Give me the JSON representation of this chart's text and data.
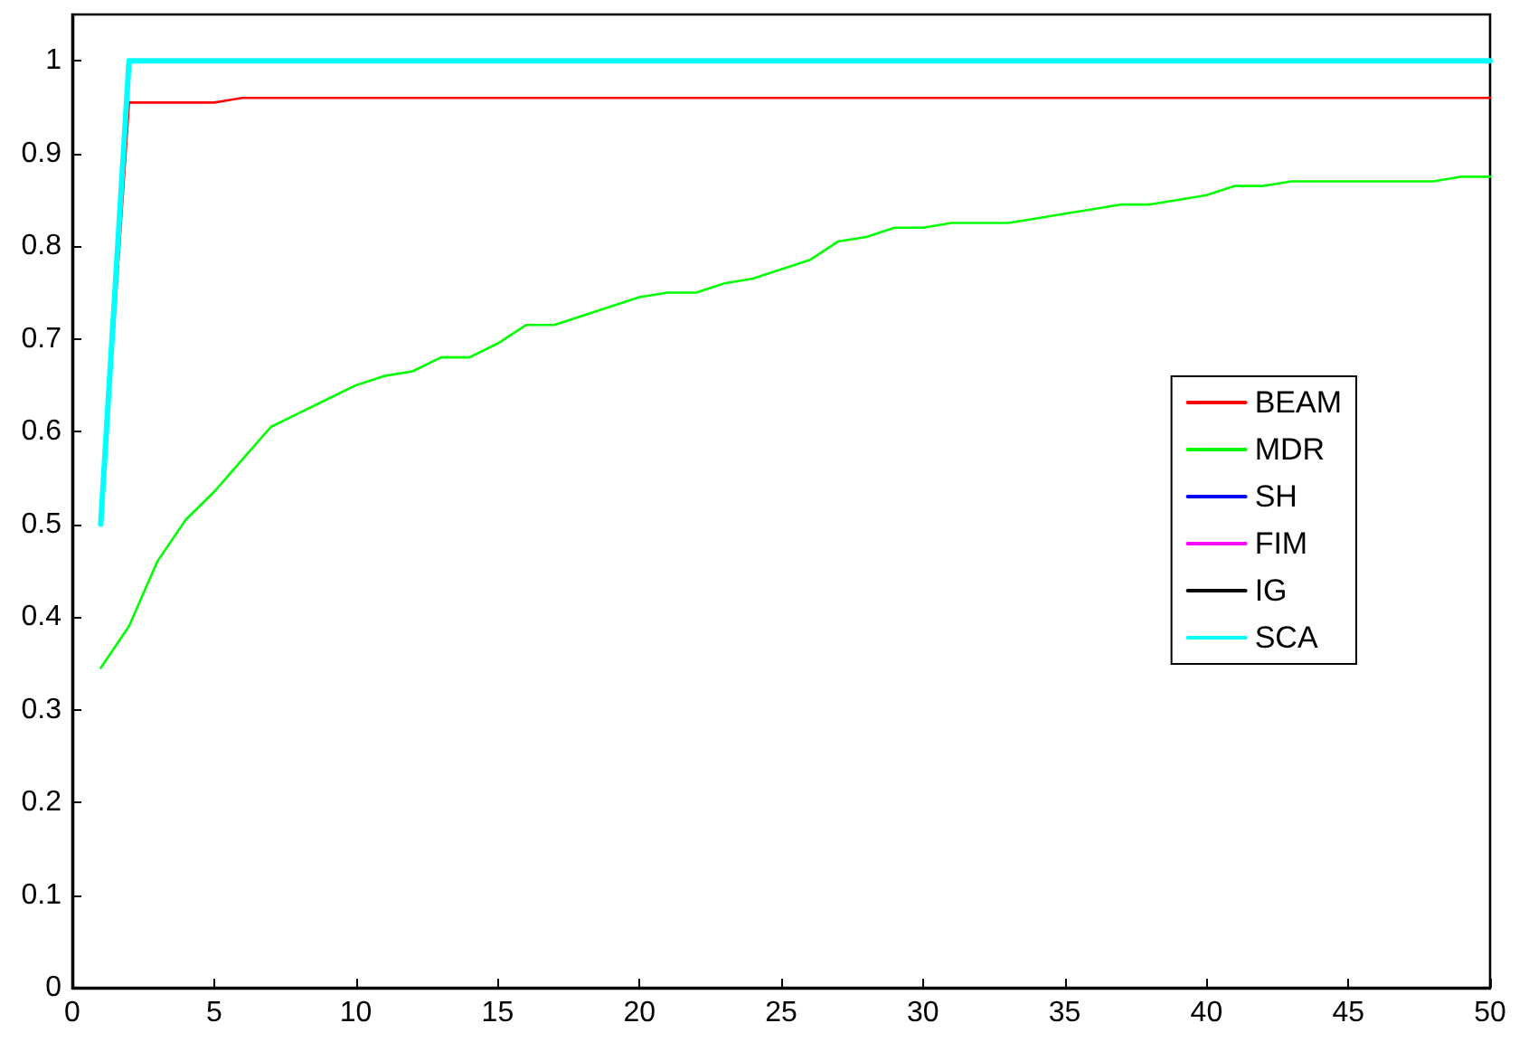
{
  "chart_data": {
    "type": "line",
    "x": [
      1,
      2,
      3,
      4,
      5,
      6,
      7,
      8,
      9,
      10,
      11,
      12,
      13,
      14,
      15,
      16,
      17,
      18,
      19,
      20,
      21,
      22,
      23,
      24,
      25,
      26,
      27,
      28,
      29,
      30,
      31,
      32,
      33,
      34,
      35,
      36,
      37,
      38,
      39,
      40,
      41,
      42,
      43,
      44,
      45,
      46,
      47,
      48,
      49,
      50
    ],
    "xlim": [
      0,
      50
    ],
    "xticks": [
      0,
      5,
      10,
      15,
      20,
      25,
      30,
      35,
      40,
      45,
      50
    ],
    "ylim": [
      0,
      1.05
    ],
    "yticks": [
      0,
      0.1,
      0.2,
      0.3,
      0.4,
      0.5,
      0.6,
      0.7,
      0.8,
      0.9,
      1
    ],
    "grid": false,
    "legend": "right",
    "marker": "none",
    "line_style": "solid",
    "series": [
      {
        "name": "BEAM",
        "color": "#ff0000",
        "values": [
          0.5,
          0.955,
          0.955,
          0.955,
          0.955,
          0.96,
          0.96,
          0.96,
          0.96,
          0.96,
          0.96,
          0.96,
          0.96,
          0.96,
          0.96,
          0.96,
          0.96,
          0.96,
          0.96,
          0.96,
          0.96,
          0.96,
          0.96,
          0.96,
          0.96,
          0.96,
          0.96,
          0.96,
          0.96,
          0.96,
          0.96,
          0.96,
          0.96,
          0.96,
          0.96,
          0.96,
          0.96,
          0.96,
          0.96,
          0.96,
          0.96,
          0.96,
          0.96,
          0.96,
          0.96,
          0.96,
          0.96,
          0.96,
          0.96,
          0.96
        ]
      },
      {
        "name": "MDR",
        "color": "#00ff00",
        "values": [
          0.345,
          0.39,
          0.46,
          0.505,
          0.535,
          0.57,
          0.605,
          0.62,
          0.635,
          0.65,
          0.66,
          0.665,
          0.68,
          0.68,
          0.695,
          0.715,
          0.715,
          0.725,
          0.735,
          0.745,
          0.75,
          0.75,
          0.76,
          0.765,
          0.775,
          0.785,
          0.805,
          0.81,
          0.82,
          0.82,
          0.825,
          0.825,
          0.825,
          0.83,
          0.835,
          0.84,
          0.845,
          0.845,
          0.85,
          0.855,
          0.865,
          0.865,
          0.87,
          0.87,
          0.87,
          0.87,
          0.87,
          0.87,
          0.875,
          0.875
        ]
      },
      {
        "name": "SH",
        "color": "#0000ff",
        "values": [
          null,
          null,
          null,
          null,
          null,
          null,
          null,
          null,
          null,
          null,
          null,
          null,
          null,
          null,
          null,
          null,
          null,
          null,
          null,
          null,
          null,
          null,
          null,
          null,
          null,
          null,
          null,
          null,
          null,
          null,
          null,
          null,
          null,
          null,
          null,
          null,
          null,
          null,
          null,
          null,
          null,
          null,
          null,
          null,
          null,
          null,
          null,
          null,
          null,
          null
        ]
      },
      {
        "name": "FIM",
        "color": "#ff00ff",
        "values": [
          null,
          null,
          null,
          null,
          null,
          null,
          null,
          null,
          null,
          null,
          null,
          null,
          null,
          null,
          null,
          null,
          null,
          null,
          null,
          null,
          null,
          null,
          null,
          null,
          null,
          null,
          null,
          null,
          null,
          null,
          null,
          null,
          null,
          null,
          null,
          null,
          null,
          null,
          null,
          null,
          null,
          null,
          null,
          null,
          null,
          null,
          null,
          null,
          null,
          null
        ]
      },
      {
        "name": "IG",
        "color": "#000000",
        "values": [
          null,
          null,
          null,
          null,
          null,
          null,
          null,
          null,
          null,
          null,
          null,
          null,
          null,
          null,
          null,
          null,
          null,
          null,
          null,
          null,
          null,
          null,
          null,
          null,
          null,
          null,
          null,
          null,
          null,
          null,
          null,
          null,
          null,
          null,
          null,
          null,
          null,
          null,
          null,
          null,
          null,
          null,
          null,
          null,
          null,
          null,
          null,
          null,
          null,
          null
        ]
      },
      {
        "name": "SCA",
        "color": "#00ffff",
        "values": [
          0.5,
          1,
          1,
          1,
          1,
          1,
          1,
          1,
          1,
          1,
          1,
          1,
          1,
          1,
          1,
          1,
          1,
          1,
          1,
          1,
          1,
          1,
          1,
          1,
          1,
          1,
          1,
          1,
          1,
          1,
          1,
          1,
          1,
          1,
          1,
          1,
          1,
          1,
          1,
          1,
          1,
          1,
          1,
          1,
          1,
          1,
          1,
          1,
          1,
          1
        ]
      }
    ]
  }
}
